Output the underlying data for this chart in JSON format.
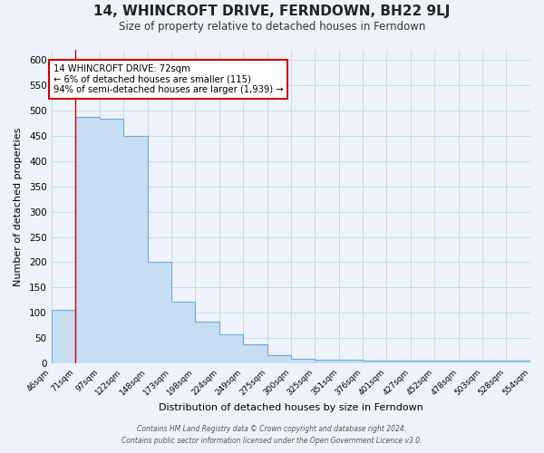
{
  "title": "14, WHINCROFT DRIVE, FERNDOWN, BH22 9LJ",
  "subtitle": "Size of property relative to detached houses in Ferndown",
  "xlabel": "Distribution of detached houses by size in Ferndown",
  "ylabel": "Number of detached properties",
  "bar_edges": [
    46,
    71,
    97,
    122,
    148,
    173,
    198,
    224,
    249,
    275,
    300,
    325,
    351,
    376,
    401,
    427,
    452,
    478,
    503,
    528,
    554
  ],
  "bar_heights": [
    105,
    487,
    483,
    450,
    200,
    122,
    82,
    57,
    38,
    16,
    10,
    8,
    8,
    5,
    5,
    5,
    5,
    5,
    5,
    5
  ],
  "tick_labels": [
    "46sqm",
    "71sqm",
    "97sqm",
    "122sqm",
    "148sqm",
    "173sqm",
    "198sqm",
    "224sqm",
    "249sqm",
    "275sqm",
    "300sqm",
    "325sqm",
    "351sqm",
    "376sqm",
    "401sqm",
    "427sqm",
    "452sqm",
    "478sqm",
    "503sqm",
    "528sqm",
    "554sqm"
  ],
  "bar_color": "#c9ddf2",
  "bar_edge_color": "#6aaad4",
  "vline_x": 71,
  "vline_color": "#cc0000",
  "annotation_line1": "14 WHINCROFT DRIVE: 72sqm",
  "annotation_line2": "← 6% of detached houses are smaller (115)",
  "annotation_line3": "94% of semi-detached houses are larger (1,939) →",
  "annotation_box_color": "#ffffff",
  "annotation_box_edge": "#cc0000",
  "ylim": [
    0,
    620
  ],
  "xlim": [
    46,
    554
  ],
  "yticks": [
    0,
    50,
    100,
    150,
    200,
    250,
    300,
    350,
    400,
    450,
    500,
    550,
    600
  ],
  "grid_color": "#c8d8ea",
  "background_color": "#eef3fb",
  "footer_line1": "Contains HM Land Registry data © Crown copyright and database right 2024.",
  "footer_line2": "Contains public sector information licensed under the Open Government Licence v3.0."
}
